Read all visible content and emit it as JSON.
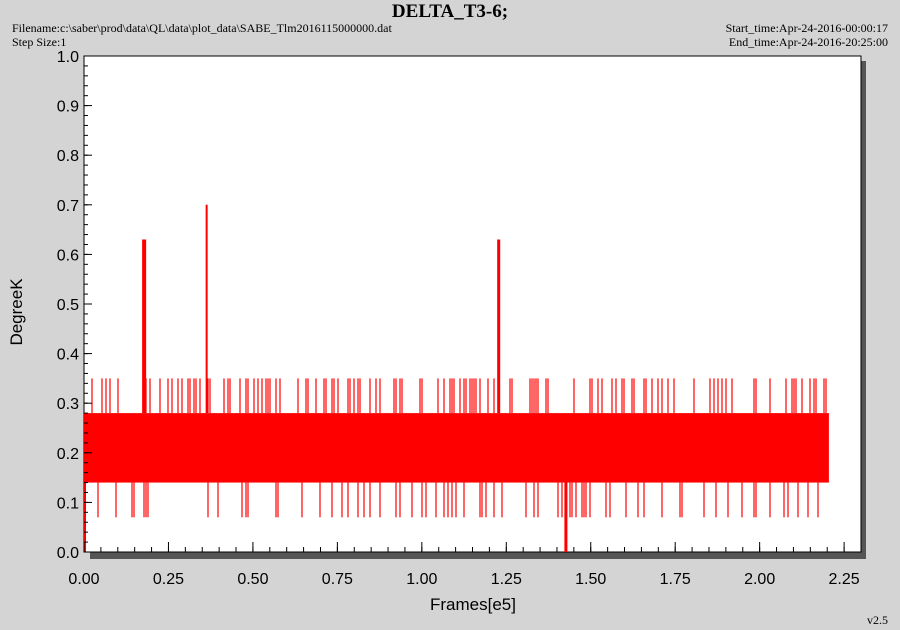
{
  "header": {
    "title": "DELTA_T3-6;",
    "filename": "Filename:c:\\saber\\prod\\data\\QL\\data\\plot_data\\SABE_Tlm2016115000000.dat",
    "step_size": "Step Size:1",
    "start_time": "Start_time:Apr-24-2016-00:00:17",
    "end_time": "End_time:Apr-24-2016-20:25:00",
    "version": "v2.5"
  },
  "chart_data": {
    "type": "line",
    "xlabel": "Frames[e5]",
    "ylabel": "DegreeK",
    "xlim": [
      0.0,
      2.3
    ],
    "ylim": [
      0.0,
      1.0
    ],
    "x_ticks": [
      "0.00",
      "0.25",
      "0.50",
      "0.75",
      "1.00",
      "1.25",
      "1.50",
      "1.75",
      "2.00",
      "2.25"
    ],
    "y_ticks": [
      "0.0",
      "0.1",
      "0.2",
      "0.3",
      "0.4",
      "0.5",
      "0.6",
      "0.7",
      "0.8",
      "0.9",
      "1.0"
    ],
    "grid": false,
    "series_color": "#ff0000",
    "x_range": [
      0.0,
      2.205
    ],
    "band_lower": 0.14,
    "band_upper": 0.28,
    "upper_excursions": [
      0.35
    ],
    "lower_excursions": [
      0.07
    ],
    "spikes": [
      {
        "x": 0.175,
        "y": 0.63
      },
      {
        "x": 0.178,
        "y": 0.63
      },
      {
        "x": 0.181,
        "y": 0.63
      },
      {
        "x": 0.363,
        "y": 0.7
      },
      {
        "x": 1.226,
        "y": 0.63
      },
      {
        "x": 1.229,
        "y": 0.63
      }
    ],
    "dips": [
      {
        "x": 0.003,
        "y": 0.0
      },
      {
        "x": 1.425,
        "y": 0.0
      },
      {
        "x": 1.428,
        "y": 0.0
      }
    ]
  }
}
